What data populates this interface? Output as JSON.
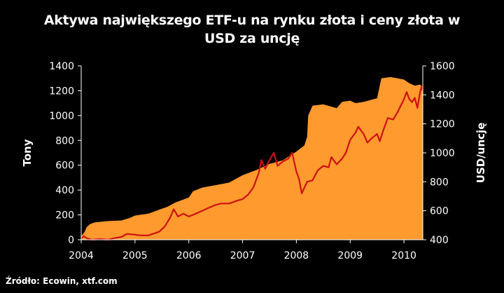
{
  "chart_data": {
    "type": "area",
    "title_line1": "Aktywa największego ETF-u na rynku złota i ceny złota w",
    "title_line2": "USD  za uncję",
    "source": "Źródło: Ecowin, xtf.com",
    "ylabel_left": "Tony",
    "ylabel_right": "USD/uncję",
    "y_left": {
      "min": 0,
      "max": 1400,
      "ticks": [
        "0",
        "200",
        "400",
        "600",
        "800",
        "1000",
        "1200",
        "1400"
      ]
    },
    "y_right": {
      "min": 400,
      "max": 1600,
      "ticks": [
        "400",
        "600",
        "800",
        "1000",
        "1200",
        "1400",
        "1600"
      ]
    },
    "x": {
      "min": 2004,
      "max": 2010.35,
      "ticks": [
        "2004",
        "2005",
        "2006",
        "2007",
        "2008",
        "2009",
        "2010"
      ]
    },
    "grid": false,
    "colors": {
      "area": "#FF9A2E",
      "line": "#CC1111",
      "background": "#000000",
      "text": "#FFFFFF",
      "axis": "#FFFFFF"
    },
    "series": [
      {
        "axis": "left",
        "type": "area",
        "points": [
          [
            2004.0,
            0
          ],
          [
            2004.0,
            30
          ],
          [
            2004.06,
            60
          ],
          [
            2004.1,
            100
          ],
          [
            2004.16,
            125
          ],
          [
            2004.25,
            140
          ],
          [
            2004.5,
            150
          ],
          [
            2004.75,
            155
          ],
          [
            2004.9,
            175
          ],
          [
            2005.0,
            195
          ],
          [
            2005.25,
            210
          ],
          [
            2005.5,
            250
          ],
          [
            2005.6,
            265
          ],
          [
            2005.75,
            300
          ],
          [
            2006.0,
            340
          ],
          [
            2006.08,
            390
          ],
          [
            2006.25,
            420
          ],
          [
            2006.5,
            440
          ],
          [
            2006.75,
            460
          ],
          [
            2007.0,
            520
          ],
          [
            2007.25,
            560
          ],
          [
            2007.5,
            610
          ],
          [
            2007.75,
            640
          ],
          [
            2008.0,
            710
          ],
          [
            2008.15,
            760
          ],
          [
            2008.2,
            830
          ],
          [
            2008.22,
            1000
          ],
          [
            2008.3,
            1080
          ],
          [
            2008.5,
            1090
          ],
          [
            2008.75,
            1060
          ],
          [
            2008.85,
            1110
          ],
          [
            2009.0,
            1120
          ],
          [
            2009.1,
            1100
          ],
          [
            2009.25,
            1110
          ],
          [
            2009.5,
            1140
          ],
          [
            2009.58,
            1300
          ],
          [
            2009.75,
            1310
          ],
          [
            2010.0,
            1290
          ],
          [
            2010.1,
            1260
          ],
          [
            2010.2,
            1240
          ],
          [
            2010.3,
            1250
          ],
          [
            2010.35,
            1220
          ],
          [
            2010.35,
            0
          ]
        ]
      },
      {
        "axis": "right",
        "type": "line",
        "points": [
          [
            2004.0,
            410
          ],
          [
            2004.05,
            425
          ],
          [
            2004.1,
            410
          ],
          [
            2004.2,
            400
          ],
          [
            2004.35,
            405
          ],
          [
            2004.5,
            400
          ],
          [
            2004.6,
            410
          ],
          [
            2004.75,
            420
          ],
          [
            2004.85,
            440
          ],
          [
            2005.0,
            435
          ],
          [
            2005.1,
            430
          ],
          [
            2005.25,
            430
          ],
          [
            2005.45,
            455
          ],
          [
            2005.55,
            490
          ],
          [
            2005.65,
            550
          ],
          [
            2005.72,
            610
          ],
          [
            2005.8,
            560
          ],
          [
            2005.9,
            580
          ],
          [
            2006.0,
            560
          ],
          [
            2006.1,
            575
          ],
          [
            2006.25,
            600
          ],
          [
            2006.4,
            625
          ],
          [
            2006.5,
            640
          ],
          [
            2006.6,
            650
          ],
          [
            2006.75,
            650
          ],
          [
            2006.9,
            670
          ],
          [
            2007.0,
            680
          ],
          [
            2007.1,
            710
          ],
          [
            2007.2,
            760
          ],
          [
            2007.3,
            860
          ],
          [
            2007.35,
            950
          ],
          [
            2007.42,
            890
          ],
          [
            2007.5,
            950
          ],
          [
            2007.58,
            1000
          ],
          [
            2007.65,
            910
          ],
          [
            2007.75,
            940
          ],
          [
            2007.85,
            960
          ],
          [
            2007.92,
            1000
          ],
          [
            2008.0,
            870
          ],
          [
            2008.05,
            820
          ],
          [
            2008.1,
            720
          ],
          [
            2008.15,
            760
          ],
          [
            2008.2,
            800
          ],
          [
            2008.3,
            810
          ],
          [
            2008.4,
            880
          ],
          [
            2008.5,
            910
          ],
          [
            2008.6,
            900
          ],
          [
            2008.65,
            970
          ],
          [
            2008.75,
            920
          ],
          [
            2008.85,
            960
          ],
          [
            2008.92,
            1000
          ],
          [
            2009.0,
            1090
          ],
          [
            2009.1,
            1140
          ],
          [
            2009.15,
            1180
          ],
          [
            2009.25,
            1130
          ],
          [
            2009.32,
            1070
          ],
          [
            2009.4,
            1100
          ],
          [
            2009.5,
            1130
          ],
          [
            2009.55,
            1080
          ],
          [
            2009.62,
            1160
          ],
          [
            2009.7,
            1240
          ],
          [
            2009.8,
            1230
          ],
          [
            2009.88,
            1280
          ],
          [
            2010.0,
            1370
          ],
          [
            2010.05,
            1420
          ],
          [
            2010.1,
            1370
          ],
          [
            2010.15,
            1350
          ],
          [
            2010.2,
            1380
          ],
          [
            2010.25,
            1310
          ],
          [
            2010.3,
            1420
          ],
          [
            2010.33,
            1460
          ],
          [
            2010.35,
            1430
          ]
        ]
      }
    ]
  }
}
